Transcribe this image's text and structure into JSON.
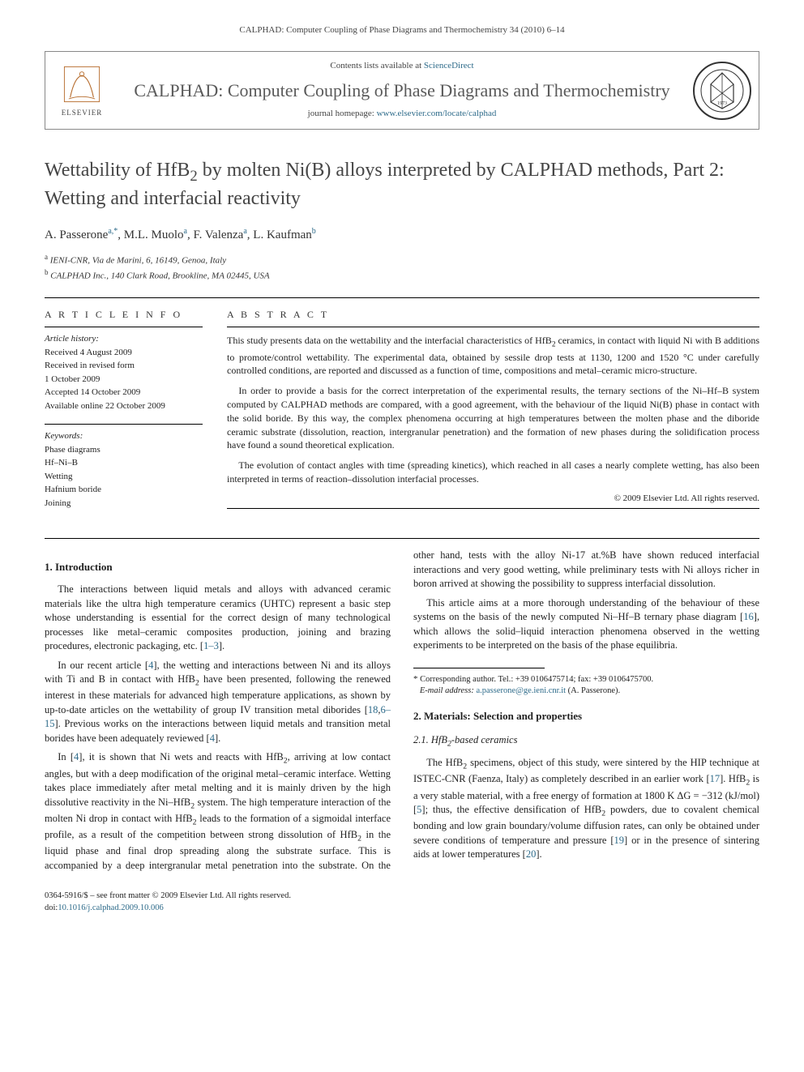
{
  "running_head": "CALPHAD: Computer Coupling of Phase Diagrams and Thermochemistry 34 (2010) 6–14",
  "masthead": {
    "contents_prefix": "Contents lists available at ",
    "contents_link": "ScienceDirect",
    "journal_title": "CALPHAD: Computer Coupling of Phase Diagrams and Thermochemistry",
    "homepage_prefix": "journal homepage: ",
    "homepage_link": "www.elsevier.com/locate/calphad",
    "publisher_name": "ELSEVIER"
  },
  "article": {
    "title_html": "Wettability of HfB<span class=\"sub\">2</span> by molten Ni(B) alloys interpreted by CALPHAD methods, Part 2: Wetting and interfacial reactivity",
    "authors_html": "A. Passerone<span class=\"sup\">a,*</span>, M.L. Muolo<span class=\"sup\">a</span>, F. Valenza<span class=\"sup\">a</span>, L. Kaufman<span class=\"sup\">b</span>",
    "affiliations": [
      {
        "sup": "a",
        "text": "IENI-CNR, Via de Marini, 6, 16149, Genoa, Italy"
      },
      {
        "sup": "b",
        "text": "CALPHAD Inc., 140 Clark Road, Brookline, MA 02445, USA"
      }
    ]
  },
  "info": {
    "head": "A R T I C L E   I N F O",
    "history_label": "Article history:",
    "history": [
      "Received 4 August 2009",
      "Received in revised form",
      "1 October 2009",
      "Accepted 14 October 2009",
      "Available online 22 October 2009"
    ],
    "keywords_label": "Keywords:",
    "keywords": [
      "Phase diagrams",
      "Hf–Ni–B",
      "Wetting",
      "Hafnium boride",
      "Joining"
    ]
  },
  "abstract": {
    "head": "A B S T R A C T",
    "paragraphs_html": [
      "This study presents data on the wettability and the interfacial characteristics of HfB<span class=\"sub\">2</span> ceramics, in contact with liquid Ni with B additions to promote/control wettability. The experimental data, obtained by sessile drop tests at 1130, 1200 and 1520 °C under carefully controlled conditions, are reported and discussed as a function of time, compositions and metal–ceramic micro-structure.",
      "In order to provide a basis for the correct interpretation of the experimental results, the ternary sections of the Ni–Hf–B system computed by CALPHAD methods are compared, with a good agreement, with the behaviour of the liquid Ni(B) phase in contact with the solid boride. By this way, the complex phenomena occurring at high temperatures between the molten phase and the diboride ceramic substrate (dissolution, reaction, intergranular penetration) and the formation of new phases during the solidification process have found a sound theoretical explication.",
      "The evolution of contact angles with time (spreading kinetics), which reached in all cases a nearly complete wetting, has also been interpreted in terms of reaction–dissolution interfacial processes."
    ],
    "copyright": "© 2009 Elsevier Ltd. All rights reserved."
  },
  "body": {
    "s1_head": "1.  Introduction",
    "s1_paras_html": [
      "The interactions between liquid metals and alloys with advanced ceramic materials like the ultra high temperature ceramics (UHTC) represent a basic step whose understanding is essential for the correct design of many technological processes like metal–ceramic composites production, joining and brazing procedures, electronic packaging, etc. [<a data-name=\"ref-link\" data-interactable=\"true\">1–3</a>].",
      "In our recent article [<a data-name=\"ref-link\" data-interactable=\"true\">4</a>], the wetting and interactions between Ni and its alloys with Ti and B in contact with HfB<span class=\"sub\">2</span> have been presented, following the renewed interest in these materials for advanced high temperature applications, as shown by up-to-date articles on the wettability of group IV transition metal diborides [<a data-name=\"ref-link\" data-interactable=\"true\">18</a>,<a data-name=\"ref-link\" data-interactable=\"true\">6–15</a>]. Previous works on the interactions between liquid metals and transition metal borides have been adequately reviewed [<a data-name=\"ref-link\" data-interactable=\"true\">4</a>].",
      "In [<a data-name=\"ref-link\" data-interactable=\"true\">4</a>], it is shown that Ni wets and reacts with HfB<span class=\"sub\">2</span>, arriving at low contact angles, but with a deep modification of the original metal–ceramic interface. Wetting takes place immediately after metal melting and it is mainly driven by the high dissolutive reactivity in the Ni–HfB<span class=\"sub\">2</span> system. The high temperature interaction of the molten Ni drop in contact with HfB<span class=\"sub\">2</span> leads to the formation of a sigmoidal interface profile, as a result of the competition between strong dissolution of HfB<span class=\"sub\">2</span> in the liquid phase and final drop spreading along the substrate surface. This is accompanied by a deep intergranular metal penetration into the substrate. On the other hand, tests with the alloy Ni-17 at.%B have shown reduced interfacial interactions and very good wetting, while preliminary tests with Ni alloys richer in boron arrived at showing the possibility to suppress interfacial dissolution.",
      "This article aims at a more thorough understanding of the behaviour of these systems on the basis of the newly computed Ni–Hf–B ternary phase diagram [<a data-name=\"ref-link\" data-interactable=\"true\">16</a>], which allows the solid–liquid interaction phenomena observed in the wetting experiments to be interpreted on the basis of the phase equilibria."
    ],
    "s2_head": "2.  Materials: Selection and properties",
    "s21_head_html": "2.1.  HfB<span class=\"sub\">2</span>-based ceramics",
    "s21_paras_html": [
      "The HfB<span class=\"sub\">2</span> specimens, object of this study, were sintered by the HIP technique at ISTEC-CNR (Faenza, Italy) as completely described in an earlier work [<a data-name=\"ref-link\" data-interactable=\"true\">17</a>]. HfB<span class=\"sub\">2</span> is a very stable material, with a free energy of formation at 1800 K ΔG = −312 (kJ/mol) [<a data-name=\"ref-link\" data-interactable=\"true\">5</a>]; thus, the effective densification of HfB<span class=\"sub\">2</span> powders, due to covalent chemical bonding and low grain boundary/volume diffusion rates, can only be obtained under severe conditions of temperature and pressure [<a data-name=\"ref-link\" data-interactable=\"true\">19</a>] or in the presence of sintering aids at lower temperatures [<a data-name=\"ref-link\" data-interactable=\"true\">20</a>]."
    ]
  },
  "footnote": {
    "corr_html": "<span class=\"ast\">*</span> Corresponding author. Tel.: +39 0106475714; fax: +39 0106475700.",
    "email_label": "E-mail address:",
    "email": "a.passerone@ge.ieni.cnr.it",
    "email_who": "(A. Passerone)."
  },
  "bottom": {
    "line1": "0364-5916/$ – see front matter © 2009 Elsevier Ltd. All rights reserved.",
    "doi_label": "doi:",
    "doi": "10.1016/j.calphad.2009.10.006"
  }
}
